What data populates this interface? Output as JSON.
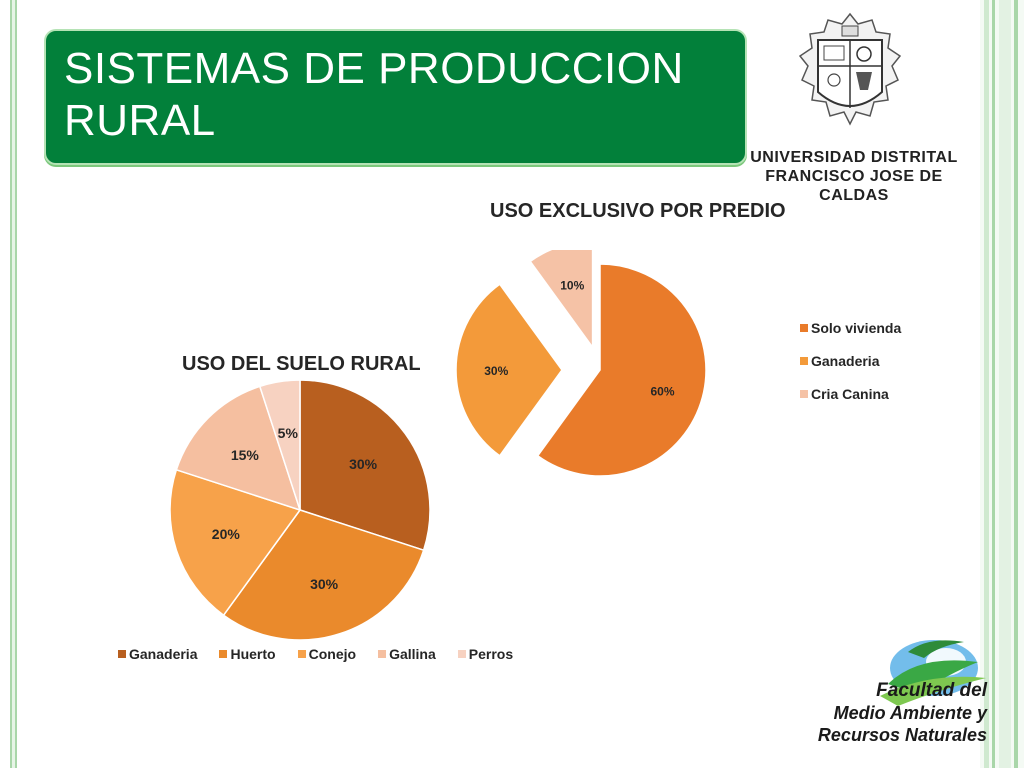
{
  "slide": {
    "title": "SISTEMAS DE PRODUCCION RURAL",
    "university": {
      "line1": "UNIVERSIDAD DISTRITAL",
      "line2": "FRANCISCO JOSE DE CALDAS"
    },
    "faculty": {
      "line1": "Facultad del",
      "line2": "Medio Ambiente y",
      "line3": "Recursos Naturales"
    }
  },
  "colors": {
    "title_bg": "#02803a",
    "accent_green": "#a9d6a9",
    "brown": "#b45f1e",
    "orange": "#f39a3a",
    "light": "#f2c4a4"
  },
  "chart_data": [
    {
      "type": "pie",
      "title": "USO DEL SUELO RURAL",
      "categories": [
        "Ganaderia",
        "Huerto",
        "Conejo",
        "Gallina",
        "Perros"
      ],
      "values": [
        30,
        30,
        20,
        15,
        5
      ],
      "labels": [
        "30%",
        "30%",
        "20%",
        "15%",
        "5%"
      ],
      "colors": [
        "#b85f1f",
        "#ea8a2c",
        "#f7a24a",
        "#f5bfa0",
        "#f7d2c1"
      ],
      "legend": "bottom"
    },
    {
      "type": "pie",
      "title": "USO EXCLUSIVO POR PREDIO",
      "categories": [
        "Solo vivienda",
        "Ganaderia",
        "Cria Canina"
      ],
      "values": [
        60,
        30,
        10
      ],
      "labels": [
        "60%",
        "30%",
        "10%"
      ],
      "colors": [
        "#e97b2a",
        "#f39a3a",
        "#f5c2a6"
      ],
      "exploded": true,
      "legend": "right"
    }
  ]
}
